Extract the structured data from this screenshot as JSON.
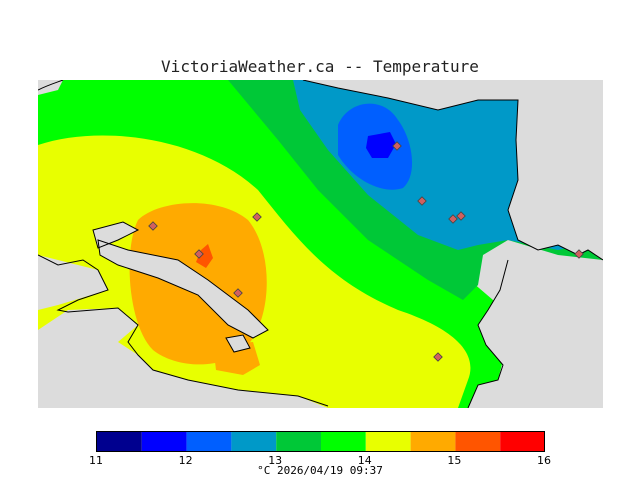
{
  "title": "VictoriaWeather.ca -- Temperature",
  "legend": {
    "ticks": [
      "11",
      "12",
      "13",
      "14",
      "15",
      "16"
    ],
    "colors": [
      "#00008f",
      "#0000ff",
      "#005fff",
      "#0099c8",
      "#00c837",
      "#00ff00",
      "#e8ff00",
      "#ffaa00",
      "#ff5500",
      "#ff0000"
    ]
  },
  "caption": "°C  2026/04/19 09:37",
  "map_colors": {
    "land_background": "#dcdcdc",
    "coast_line": "#000000",
    "station_marker": "#d06060"
  }
}
